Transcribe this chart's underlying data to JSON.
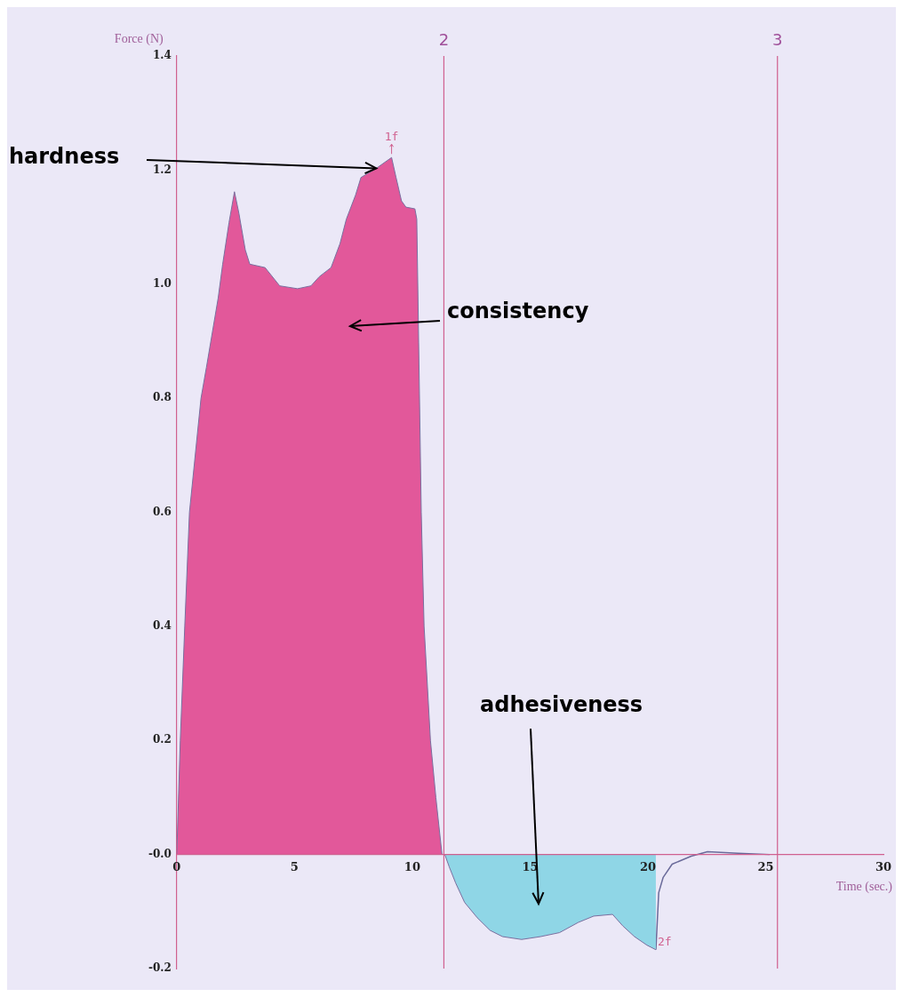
{
  "chart_data": {
    "type": "area",
    "xlabel": "Time (sec.)",
    "ylabel": "Force (N)",
    "xlim": [
      0,
      30
    ],
    "ylim": [
      -0.2,
      1.4
    ],
    "xticks": [
      0,
      5,
      10,
      15,
      20,
      25,
      30
    ],
    "yticks": [
      {
        "value": 1.4,
        "label": "1.4"
      },
      {
        "value": 1.2,
        "label": "1.2"
      },
      {
        "value": 1,
        "label": "1.0"
      },
      {
        "value": 0.8,
        "label": "0.8"
      },
      {
        "value": 0.6,
        "label": "0.6"
      },
      {
        "value": 0.4,
        "label": "0.4"
      },
      {
        "value": 0.2,
        "label": "0.2"
      },
      {
        "value": 0,
        "label": "-0.0"
      },
      {
        "value": -0.2,
        "label": "-0.2"
      }
    ],
    "grid": false,
    "legend": false,
    "series": [
      {
        "type": "area",
        "color": "#e2589a",
        "x": [
          0,
          0.15,
          0.34,
          0.54,
          1.03,
          1.26,
          1.76,
          1.95,
          2.22,
          2.45,
          2.64,
          2.91,
          3.1,
          3.75,
          4.37,
          5.13,
          5.7,
          6.05,
          6.55,
          6.93,
          7.2,
          7.59,
          7.82,
          8.47,
          9.12,
          9.31,
          9.54,
          9.73,
          10.11,
          10.19,
          10.27,
          10.38,
          10.5,
          10.77,
          11.0,
          11.26
        ],
        "values": [
          0,
          0.2,
          0.4,
          0.6,
          0.8,
          0.854,
          0.976,
          1.035,
          1.108,
          1.162,
          1.124,
          1.06,
          1.035,
          1.029,
          0.997,
          0.992,
          0.997,
          1.013,
          1.029,
          1.071,
          1.114,
          1.156,
          1.187,
          1.203,
          1.222,
          1.187,
          1.146,
          1.135,
          1.132,
          1.114,
          0.897,
          0.6,
          0.4,
          0.2,
          0.1,
          0
        ]
      },
      {
        "type": "area",
        "color": "#8fd6e6",
        "x": [
          11.38,
          11.57,
          11.84,
          12.22,
          12.76,
          13.3,
          13.83,
          14.64,
          15.44,
          16.25,
          17.05,
          17.7,
          18.5,
          18.93,
          19.43,
          19.96,
          20.34
        ],
        "values": [
          0,
          -0.022,
          -0.05,
          -0.084,
          -0.111,
          -0.133,
          -0.144,
          -0.149,
          -0.144,
          -0.137,
          -0.119,
          -0.108,
          -0.105,
          -0.125,
          -0.144,
          -0.159,
          -0.167
        ]
      },
      {
        "type": "line",
        "color": "#6a6a9a",
        "x": [
          20.34,
          20.46,
          20.65,
          21.03,
          21.84,
          22.53,
          23.83,
          25.17
        ],
        "values": [
          -0.167,
          -0.067,
          -0.04,
          -0.017,
          -0.003,
          0.005,
          0.002,
          0
        ]
      }
    ],
    "ref_lines": [
      {
        "axis": "x",
        "value": 11.34,
        "color": "#d0608f"
      },
      {
        "axis": "x",
        "value": 25.5,
        "color": "#d0608f"
      }
    ],
    "annotations": [
      {
        "text": "hardness",
        "x": 8.47,
        "y": 1.203
      },
      "consistency",
      "adhesiveness",
      {
        "text": "1f",
        "x": 9.12,
        "y": 1.222
      },
      {
        "text": "2f",
        "x": 20.34,
        "y": -0.167
      },
      "2",
      "3"
    ]
  }
}
